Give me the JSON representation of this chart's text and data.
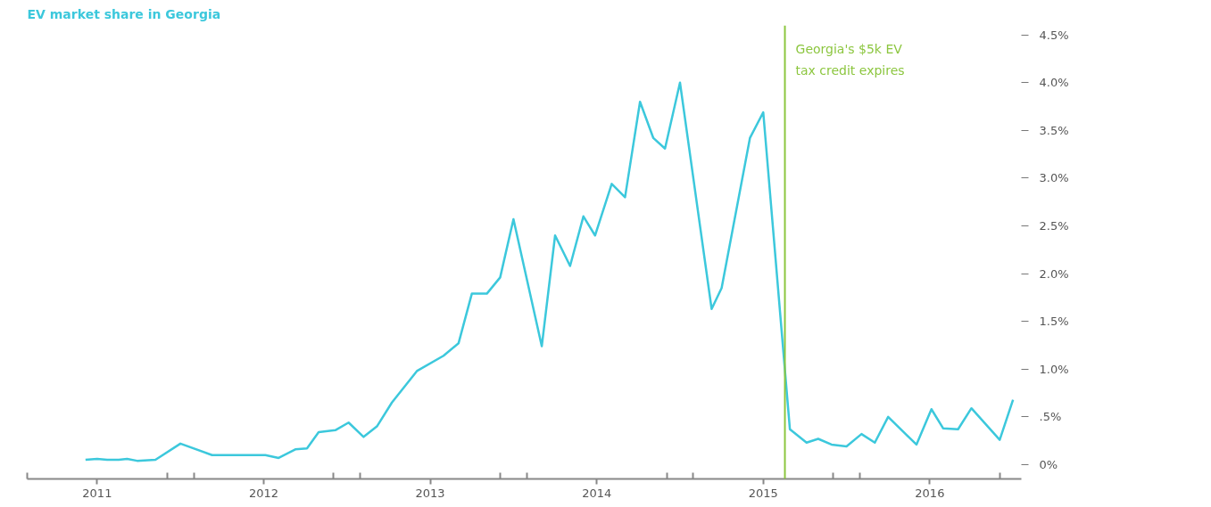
{
  "chart_data": {
    "type": "line",
    "title": "EV market share in Georgia",
    "x": [
      2011.43,
      2011.5,
      2011.56,
      2011.63,
      2011.68,
      2011.74,
      2011.85,
      2012.0,
      2012.19,
      2012.35,
      2012.51,
      2012.59,
      2012.69,
      2012.76,
      2012.83,
      2012.93,
      2013.01,
      2013.1,
      2013.18,
      2013.27,
      2013.42,
      2013.58,
      2013.67,
      2013.75,
      2013.84,
      2013.92,
      2014.0,
      2014.17,
      2014.25,
      2014.34,
      2014.42,
      2014.49,
      2014.59,
      2014.67,
      2014.76,
      2014.84,
      2014.91,
      2015.0,
      2015.19,
      2015.25,
      2015.42,
      2015.5,
      2015.66,
      2015.76,
      2015.83,
      2015.91,
      2016.0,
      2016.09,
      2016.17,
      2016.25,
      2016.42,
      2016.51,
      2016.58,
      2016.67,
      2016.75,
      2016.92,
      2017.0
    ],
    "series": [
      {
        "color": "#3cc8dc",
        "values": [
          0.05,
          0.06,
          0.05,
          0.05,
          0.06,
          0.04,
          0.05,
          0.22,
          0.1,
          0.1,
          0.1,
          0.07,
          0.16,
          0.17,
          0.34,
          0.36,
          0.44,
          0.29,
          0.4,
          0.65,
          0.98,
          1.14,
          1.27,
          1.79,
          1.79,
          1.96,
          2.57,
          1.24,
          2.4,
          2.08,
          2.6,
          2.4,
          2.94,
          2.8,
          3.8,
          3.42,
          3.31,
          4.0,
          1.63,
          1.85,
          3.42,
          3.69,
          0.37,
          0.23,
          0.27,
          0.21,
          0.19,
          0.32,
          0.23,
          0.5,
          0.21,
          0.58,
          0.38,
          0.37,
          0.59,
          0.26,
          0.68
        ]
      }
    ],
    "xlim": [
      2011.08,
      2017.05
    ],
    "xticks": [
      {
        "value": 2011.5,
        "label": "2011"
      },
      {
        "value": 2012.5,
        "label": "2012"
      },
      {
        "value": 2013.5,
        "label": "2013"
      },
      {
        "value": 2014.5,
        "label": "2014"
      },
      {
        "value": 2015.5,
        "label": "2015"
      },
      {
        "value": 2016.5,
        "label": "2016"
      }
    ],
    "ylim": [
      -0.15,
      4.6
    ],
    "yticks": [
      {
        "value": 0,
        "label": "0%"
      },
      {
        "value": 0.5,
        "label": ".5%"
      },
      {
        "value": 1.0,
        "label": "1.0%"
      },
      {
        "value": 1.5,
        "label": "1.5%"
      },
      {
        "value": 2.0,
        "label": "2.0%"
      },
      {
        "value": 2.5,
        "label": "2.5%"
      },
      {
        "value": 3.0,
        "label": "3.0%"
      },
      {
        "value": 3.5,
        "label": "3.5%"
      },
      {
        "value": 4.0,
        "label": "4.0%"
      },
      {
        "value": 4.5,
        "label": "4.5%"
      }
    ],
    "ref_lines": [
      {
        "axis": "x",
        "value": 2015.63,
        "label": "Georgia's $5k EV\ntax credit expires",
        "color": "#8cc63f"
      }
    ],
    "grid": false,
    "marker": "none",
    "line_style": "solid"
  }
}
